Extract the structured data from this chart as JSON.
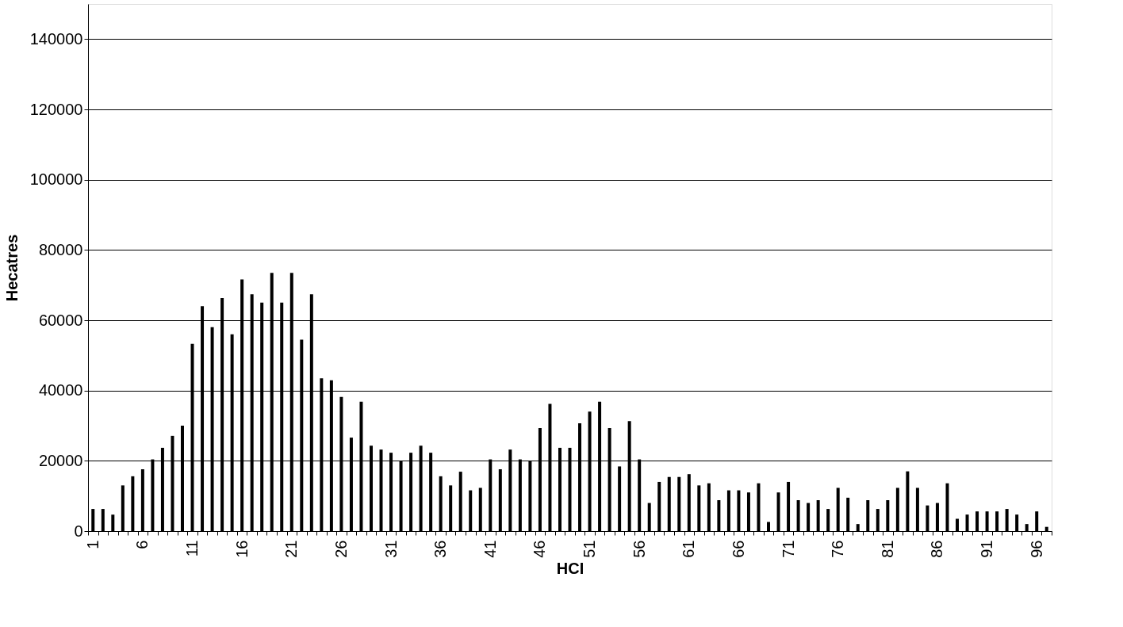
{
  "chart_data": {
    "type": "bar",
    "xlabel": "HCI",
    "ylabel": "Hecatres",
    "categories": [
      "1",
      null,
      null,
      null,
      null,
      "6",
      null,
      null,
      null,
      null,
      "11",
      null,
      null,
      null,
      null,
      "16",
      null,
      null,
      null,
      null,
      "21",
      null,
      null,
      null,
      null,
      "26",
      null,
      null,
      null,
      null,
      "31",
      null,
      null,
      null,
      null,
      "36",
      null,
      null,
      null,
      null,
      "41",
      null,
      null,
      null,
      null,
      "46",
      null,
      null,
      null,
      null,
      "51",
      null,
      null,
      null,
      null,
      "56",
      null,
      null,
      null,
      null,
      "61",
      null,
      null,
      null,
      null,
      "66",
      null,
      null,
      null,
      null,
      "71",
      null,
      null,
      null,
      null,
      "76",
      null,
      null,
      null,
      null,
      "81",
      null,
      null,
      null,
      null,
      "86",
      null,
      null,
      null,
      null,
      "91",
      null,
      null,
      null,
      null,
      "96",
      null
    ],
    "values": [
      6300,
      6300,
      4700,
      13000,
      15600,
      17600,
      20400,
      23700,
      27100,
      30000,
      53300,
      64000,
      58000,
      66300,
      56000,
      71600,
      67400,
      65000,
      73500,
      65000,
      73500,
      54500,
      67400,
      43500,
      42900,
      38200,
      26600,
      36800,
      24300,
      23200,
      22300,
      20000,
      22300,
      24300,
      22300,
      15600,
      13000,
      16900,
      11600,
      12300,
      20400,
      17600,
      23200,
      20400,
      20000,
      29300,
      36200,
      23700,
      23700,
      30700,
      34000,
      36800,
      29300,
      18400,
      31300,
      20400,
      8000,
      14000,
      15400,
      15400,
      16200,
      13000,
      13600,
      8800,
      11600,
      11600,
      11000,
      13600,
      2600,
      11000,
      14000,
      8800,
      8000,
      8800,
      6300,
      12300,
      9500,
      2000,
      8800,
      6300,
      8800,
      12300,
      17000,
      12300,
      7300,
      8000,
      13600,
      3500,
      4700,
      5600,
      5600,
      5600,
      6300,
      4700,
      2000,
      5600,
      1200
    ],
    "color": "#000000",
    "ylim": [
      0,
      150000
    ],
    "yticks": [
      0,
      20000,
      40000,
      60000,
      80000,
      100000,
      120000,
      140000
    ],
    "grid": "y"
  }
}
